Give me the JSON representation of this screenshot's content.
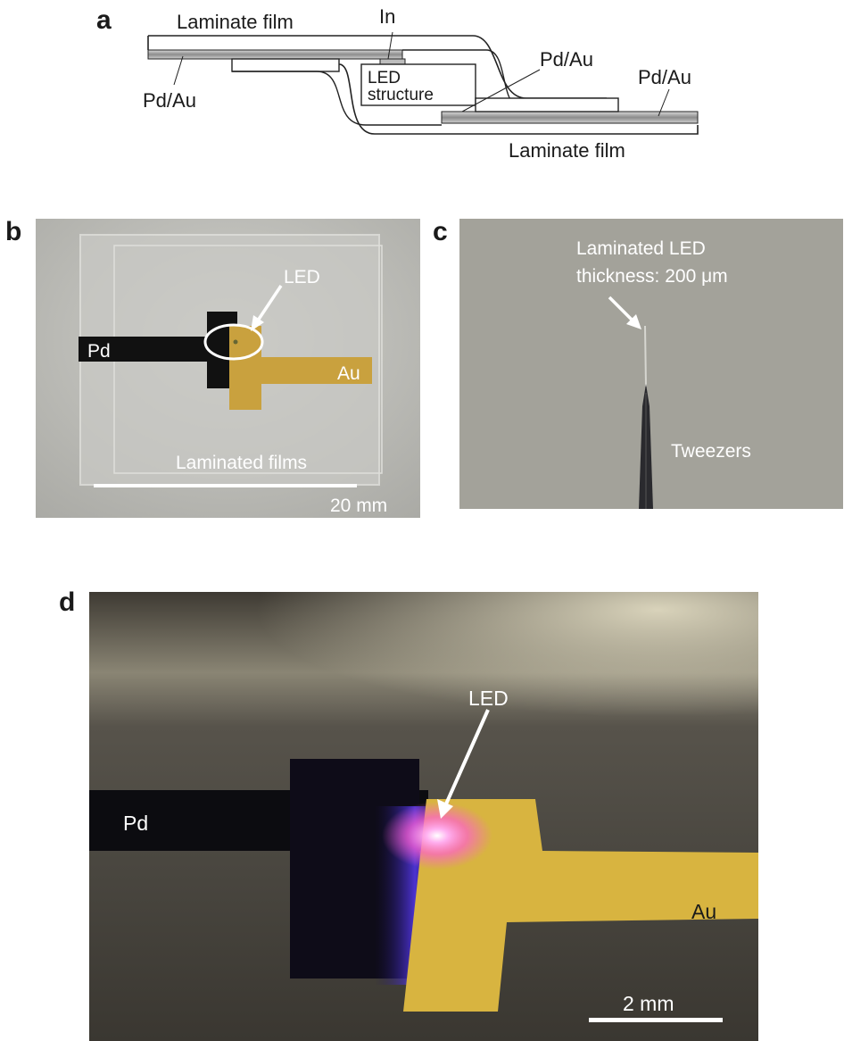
{
  "panels": {
    "a": {
      "letter": "a",
      "labels": {
        "top_film": "Laminate film",
        "in": "In",
        "pdau_left": "Pd/Au",
        "led_line1": "LED",
        "led_line2": "structure",
        "pdau_mid": "Pd/Au",
        "pdau_right": "Pd/Au",
        "bottom_film": "Laminate film"
      }
    },
    "b": {
      "letter": "b",
      "labels": {
        "pd": "Pd",
        "led": "LED",
        "au": "Au",
        "films": "Laminated films",
        "scale": "20 mm"
      }
    },
    "c": {
      "letter": "c",
      "labels": {
        "line1": "Laminated LED",
        "line2": "thickness: 200 μm",
        "tweezers": "Tweezers"
      }
    },
    "d": {
      "letter": "d",
      "labels": {
        "led": "LED",
        "pd": "Pd",
        "au": "Au",
        "scale": "2 mm"
      }
    }
  },
  "colors": {
    "pd_electrode": "#111111",
    "au_electrode": "#c9a13e",
    "au_bright": "#d8b440",
    "led_glow": "#ff5fd0",
    "led_blue": "#5a3cff"
  }
}
